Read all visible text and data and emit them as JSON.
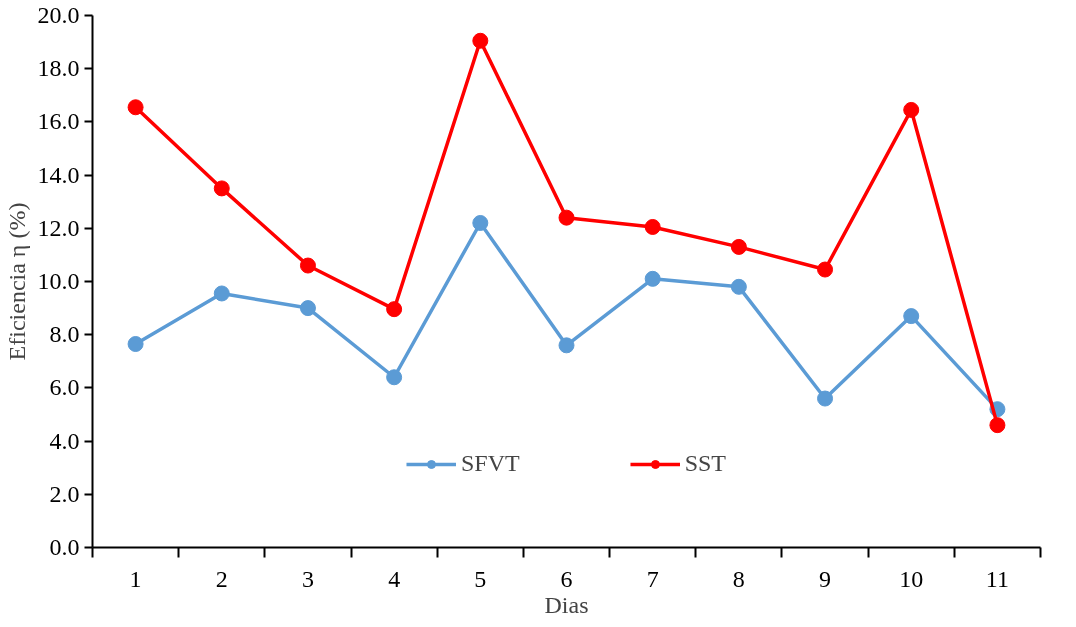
{
  "chart_data": {
    "type": "line",
    "xlabel": "Dias",
    "ylabel": "Eficiencia η (%)",
    "categories": [
      "1",
      "2",
      "3",
      "4",
      "5",
      "6",
      "7",
      "8",
      "9",
      "10",
      "11"
    ],
    "series": [
      {
        "name": "SFVT",
        "color": "#5b9bd5",
        "values": [
          7.65,
          9.55,
          9.0,
          6.4,
          12.2,
          7.6,
          10.1,
          9.8,
          5.6,
          8.7,
          5.2
        ]
      },
      {
        "name": "SST",
        "color": "#ff0000",
        "values": [
          16.55,
          13.5,
          10.6,
          8.96,
          19.05,
          12.4,
          12.05,
          11.3,
          10.45,
          16.45,
          4.6
        ]
      }
    ],
    "ylim": [
      0,
      20
    ],
    "yticks": [
      {
        "value": 0,
        "label": "0.0"
      },
      {
        "value": 2,
        "label": "2.0"
      },
      {
        "value": 4,
        "label": "4.0"
      },
      {
        "value": 6,
        "label": "6.0"
      },
      {
        "value": 8,
        "label": "8.0"
      },
      {
        "value": 10,
        "label": "10.0"
      },
      {
        "value": 12,
        "label": "12.0"
      },
      {
        "value": 14,
        "label": "14.0"
      },
      {
        "value": 16,
        "label": "16.0"
      },
      {
        "value": 18,
        "label": "18.0"
      },
      {
        "value": 20,
        "label": "20.0"
      }
    ],
    "marker": "circle",
    "line_style": "solid",
    "grid": false,
    "legend": "bottom"
  }
}
